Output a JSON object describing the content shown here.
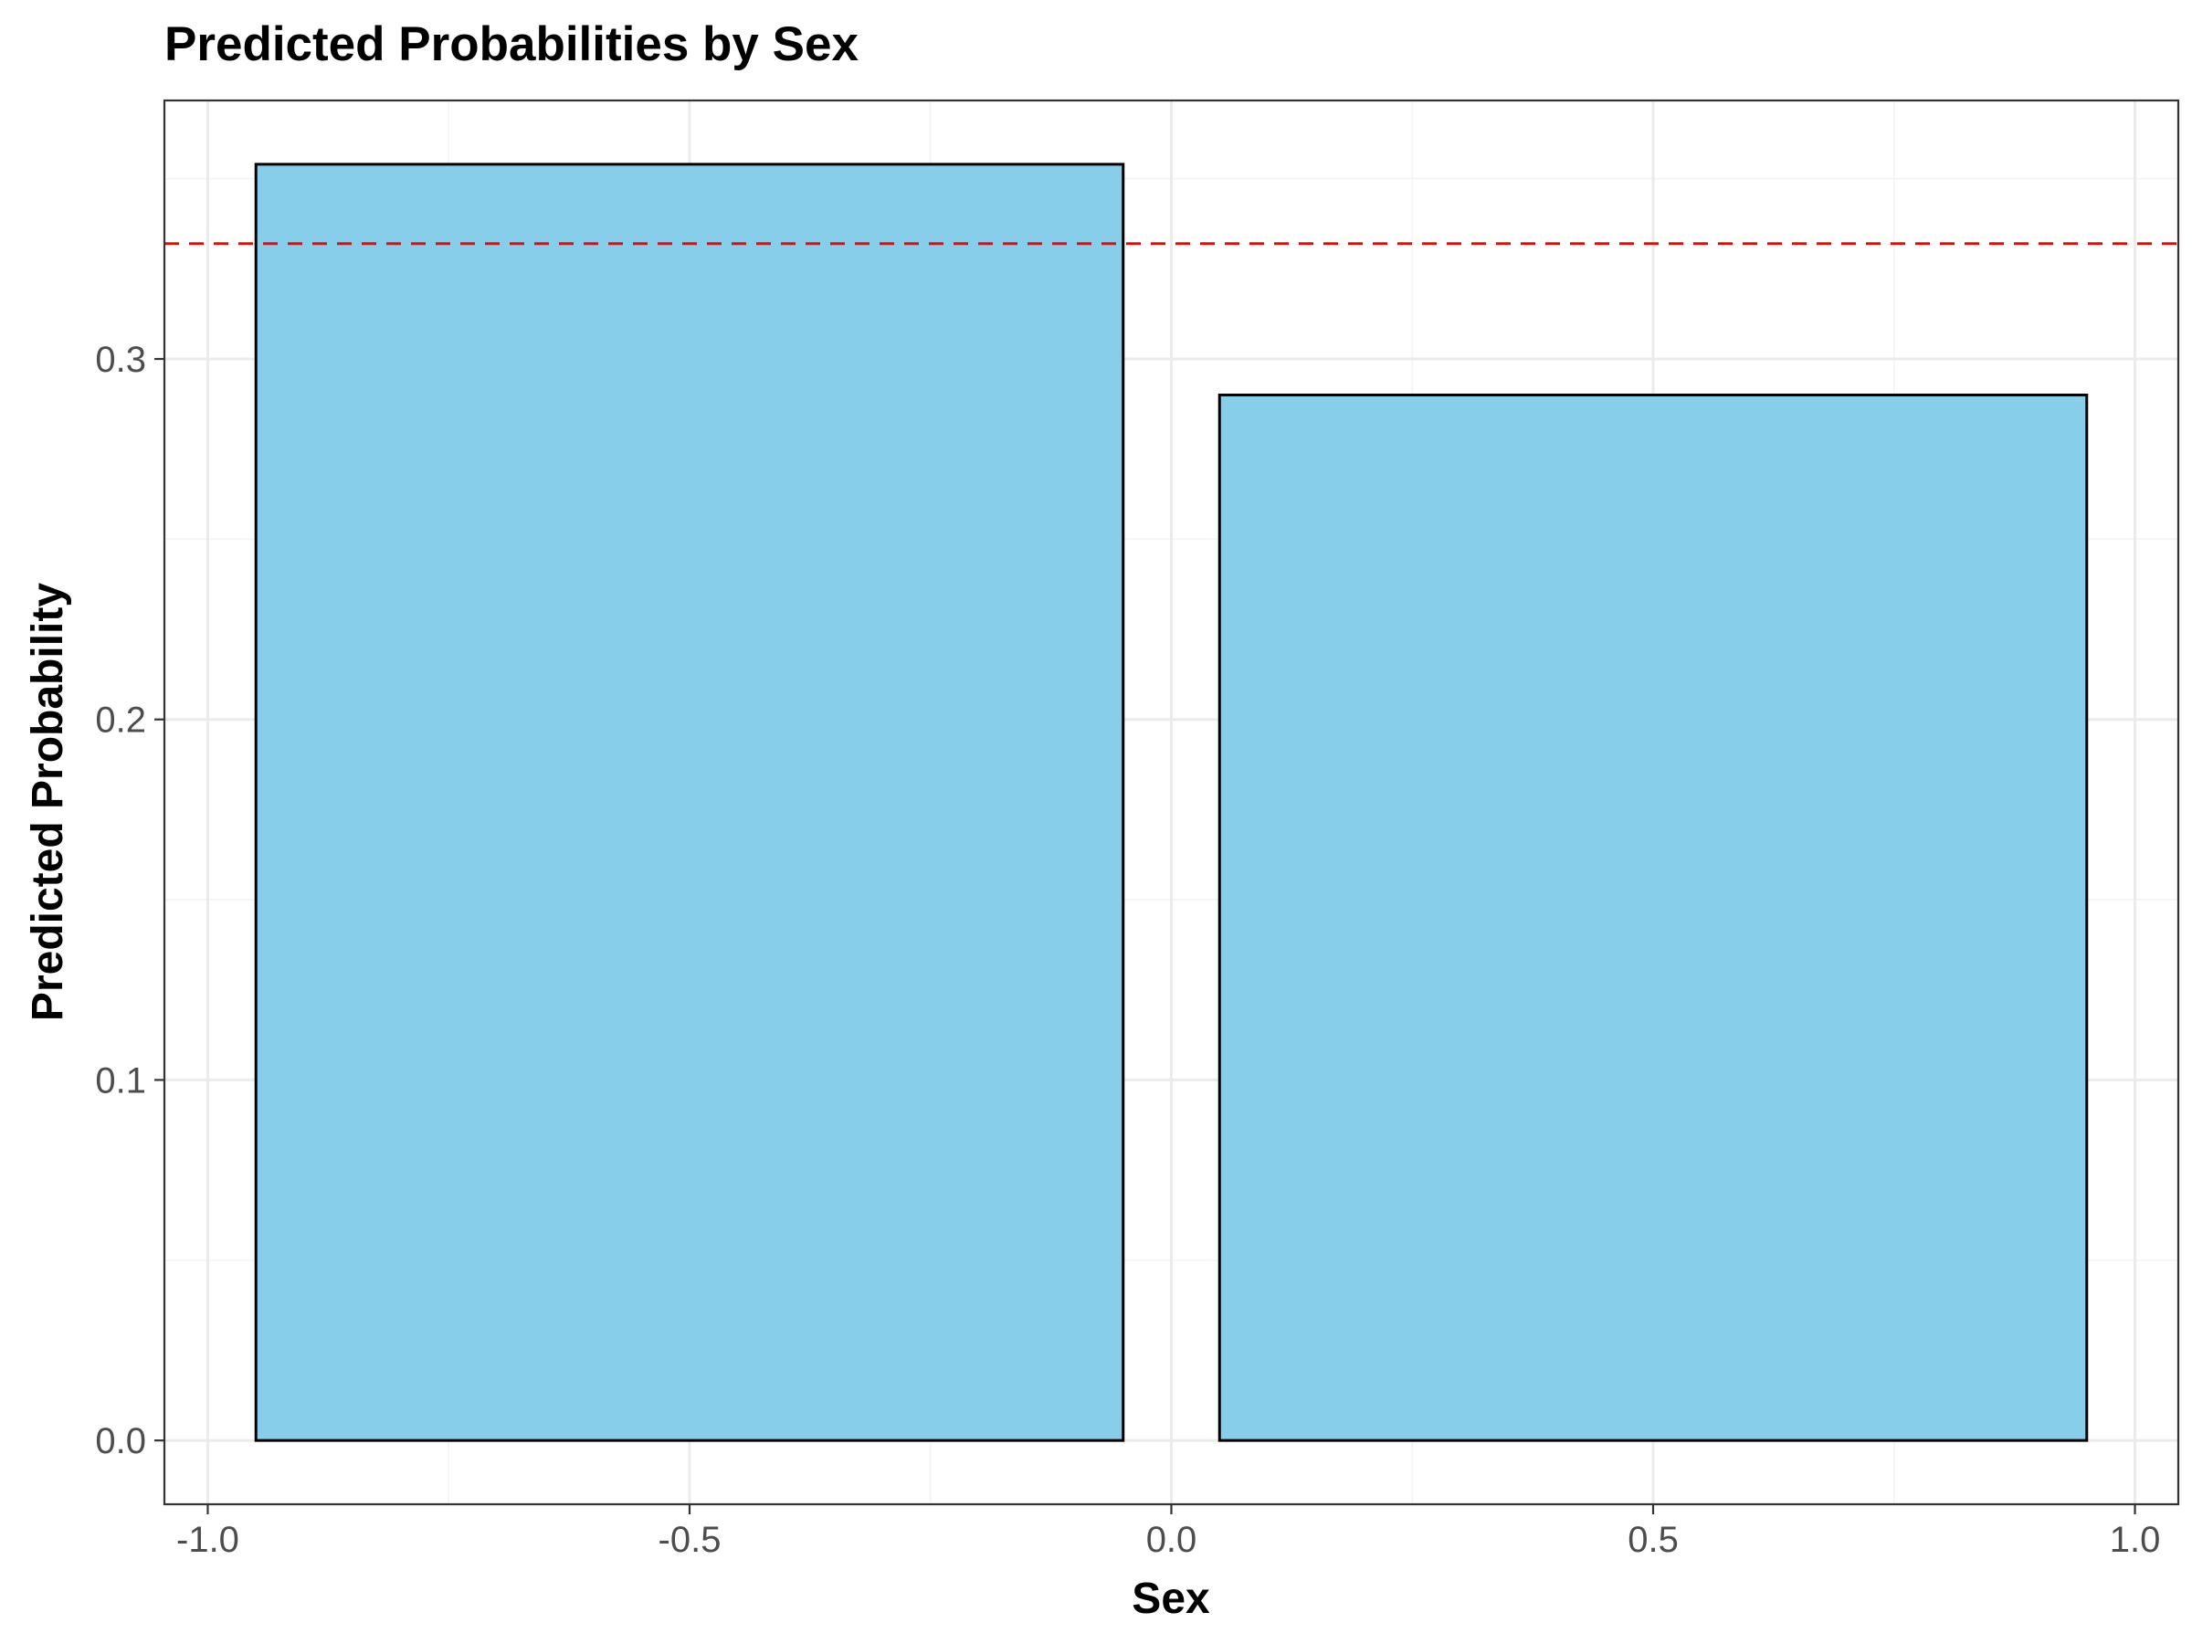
{
  "chart_data": {
    "type": "bar",
    "title": "Predicted Probabilities by Sex",
    "xlabel": "Sex",
    "ylabel": "Predicted Probability",
    "x": [
      -0.5,
      0.5
    ],
    "values": [
      0.354,
      0.29
    ],
    "bar_width": 0.9,
    "xlim": [
      -1.045,
      1.045
    ],
    "ylim": [
      -0.0177,
      0.3717
    ],
    "x_ticks": [
      -1.0,
      -0.5,
      0.0,
      0.5,
      1.0
    ],
    "x_tick_labels": [
      "-1.0",
      "-0.5",
      "0.0",
      "0.5",
      "1.0"
    ],
    "y_ticks": [
      0.0,
      0.1,
      0.2,
      0.3
    ],
    "y_tick_labels": [
      "0.0",
      "0.1",
      "0.2",
      "0.3"
    ],
    "reference_line": {
      "y": 0.332,
      "style": "dashed",
      "color": "#ff0000"
    },
    "bar_fill": "#87ceeb",
    "bar_outline": "#000000",
    "grid": true,
    "legend": "none"
  }
}
